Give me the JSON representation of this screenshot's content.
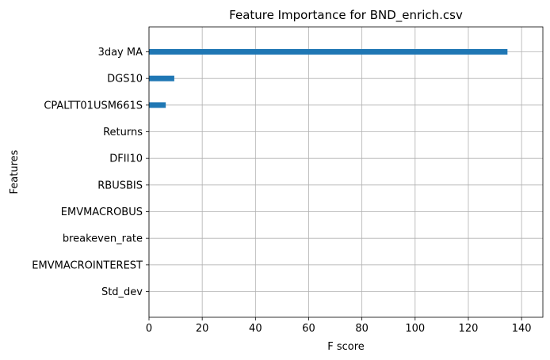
{
  "chart_data": {
    "type": "bar",
    "orientation": "horizontal",
    "title": "Feature Importance for BND_enrich.csv",
    "xlabel": "F score",
    "ylabel": "Features",
    "categories": [
      "3day MA",
      "DGS10",
      "CPALTT01USM661S",
      "Returns",
      "DFII10",
      "RBUSBIS",
      "EMVMACROBUS",
      "breakeven_rate",
      "EMVMACROINTEREST",
      "Std_dev"
    ],
    "values": [
      134.7,
      9.5,
      6.3,
      0,
      0,
      0,
      0,
      0,
      0,
      0
    ],
    "xlim": [
      0,
      148
    ],
    "xticks": [
      0,
      20,
      40,
      60,
      80,
      100,
      120,
      140
    ],
    "grid": true,
    "bar_color": "#1f77b4"
  }
}
